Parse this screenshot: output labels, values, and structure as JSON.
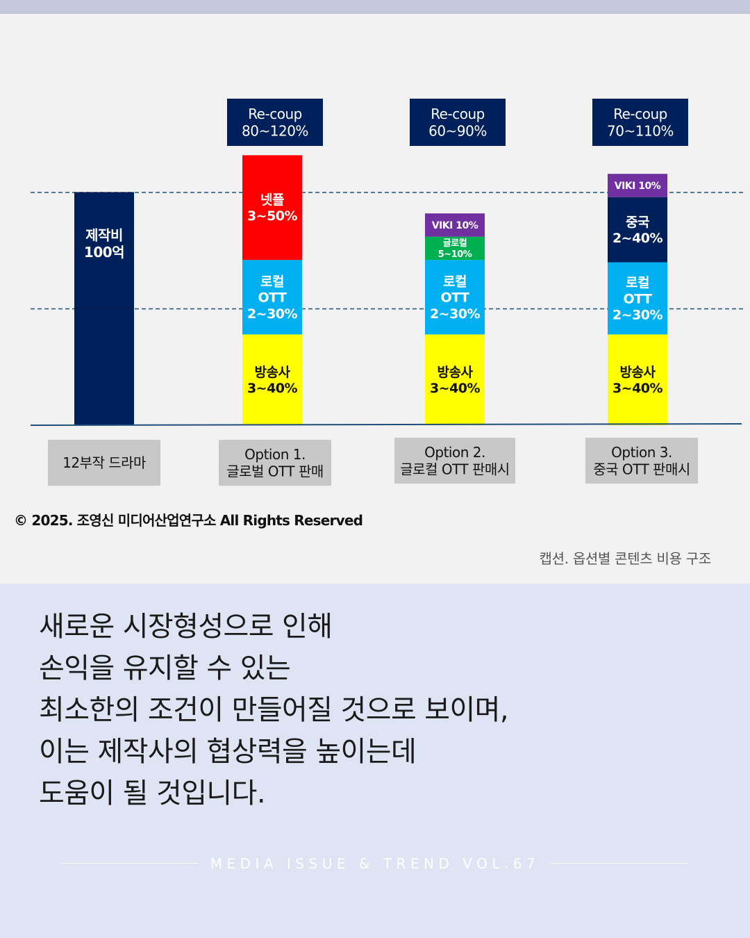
{
  "chart_data": {
    "type": "bar",
    "stacked": true,
    "reference_label": "제작비\n100억",
    "categories": [
      {
        "label": "12부작 드라마"
      },
      {
        "label": "Option 1.\n글로벌 OTT 판매"
      },
      {
        "label": "Option 2.\n글로컬 OTT 판매시"
      },
      {
        "label": "Option 3.\n중국 OTT 판매시"
      }
    ],
    "recoup": [
      null,
      "Re-coup\n80~120%",
      "Re-coup\n60~90%",
      "Re-coup\n70~110%"
    ],
    "stacks": [
      [
        {
          "label": "",
          "value": 100,
          "color": "#00205b"
        }
      ],
      [
        {
          "label": "방송사\n3~40%",
          "value": 39,
          "color": "#ffff00",
          "text_color": "#111111"
        },
        {
          "label": "로컬\nOTT\n2~30%",
          "value": 32,
          "color": "#00b0f0",
          "text_color": "#ffffff"
        },
        {
          "label": "넷플\n3~50%",
          "value": 45,
          "color": "#ff0000",
          "text_color": "#ffffff"
        }
      ],
      [
        {
          "label": "방송사\n3~40%",
          "value": 39,
          "color": "#ffff00",
          "text_color": "#111111"
        },
        {
          "label": "로컬\nOTT\n2~30%",
          "value": 32,
          "color": "#00b0f0",
          "text_color": "#ffffff"
        },
        {
          "label": "글로컬\n5~10%",
          "value": 10,
          "color": "#00b050",
          "text_color": "#ffffff"
        },
        {
          "label": "VIKI 10%",
          "value": 10,
          "color": "#7030a0",
          "text_color": "#ffffff"
        }
      ],
      [
        {
          "label": "방송사\n3~40%",
          "value": 39,
          "color": "#ffff00",
          "text_color": "#111111"
        },
        {
          "label": "로컬\nOTT\n2~30%",
          "value": 31,
          "color": "#00b0f0",
          "text_color": "#ffffff"
        },
        {
          "label": "중국\n2~40%",
          "value": 28,
          "color": "#00205b",
          "text_color": "#ffffff"
        },
        {
          "label": "VIKI 10%",
          "value": 10,
          "color": "#7030a0",
          "text_color": "#ffffff"
        }
      ]
    ],
    "reference_lines": [
      100,
      50
    ],
    "ylim": [
      0,
      140
    ],
    "colors": {
      "recoup_box": "#00205b",
      "category_box": "#c8c8c8",
      "axis": "#1f4e79",
      "reference_line": "#1f4e79"
    }
  },
  "copyright": "© 2025. 조영신 미디어산업연구소 All Rights Reserved",
  "caption": "캡션. 옵션별 콘텐츠 비용 구조",
  "body_lines": [
    "새로운 시장형성으로 인해",
    "손익을 유지할 수 있는",
    "최소한의 조건이 만들어질 것으로 보이며,",
    "이는 제작사의 협상력을 높이는데",
    "도움이 될 것입니다."
  ],
  "footer": "MEDIA ISSUE & TREND VOL.67"
}
